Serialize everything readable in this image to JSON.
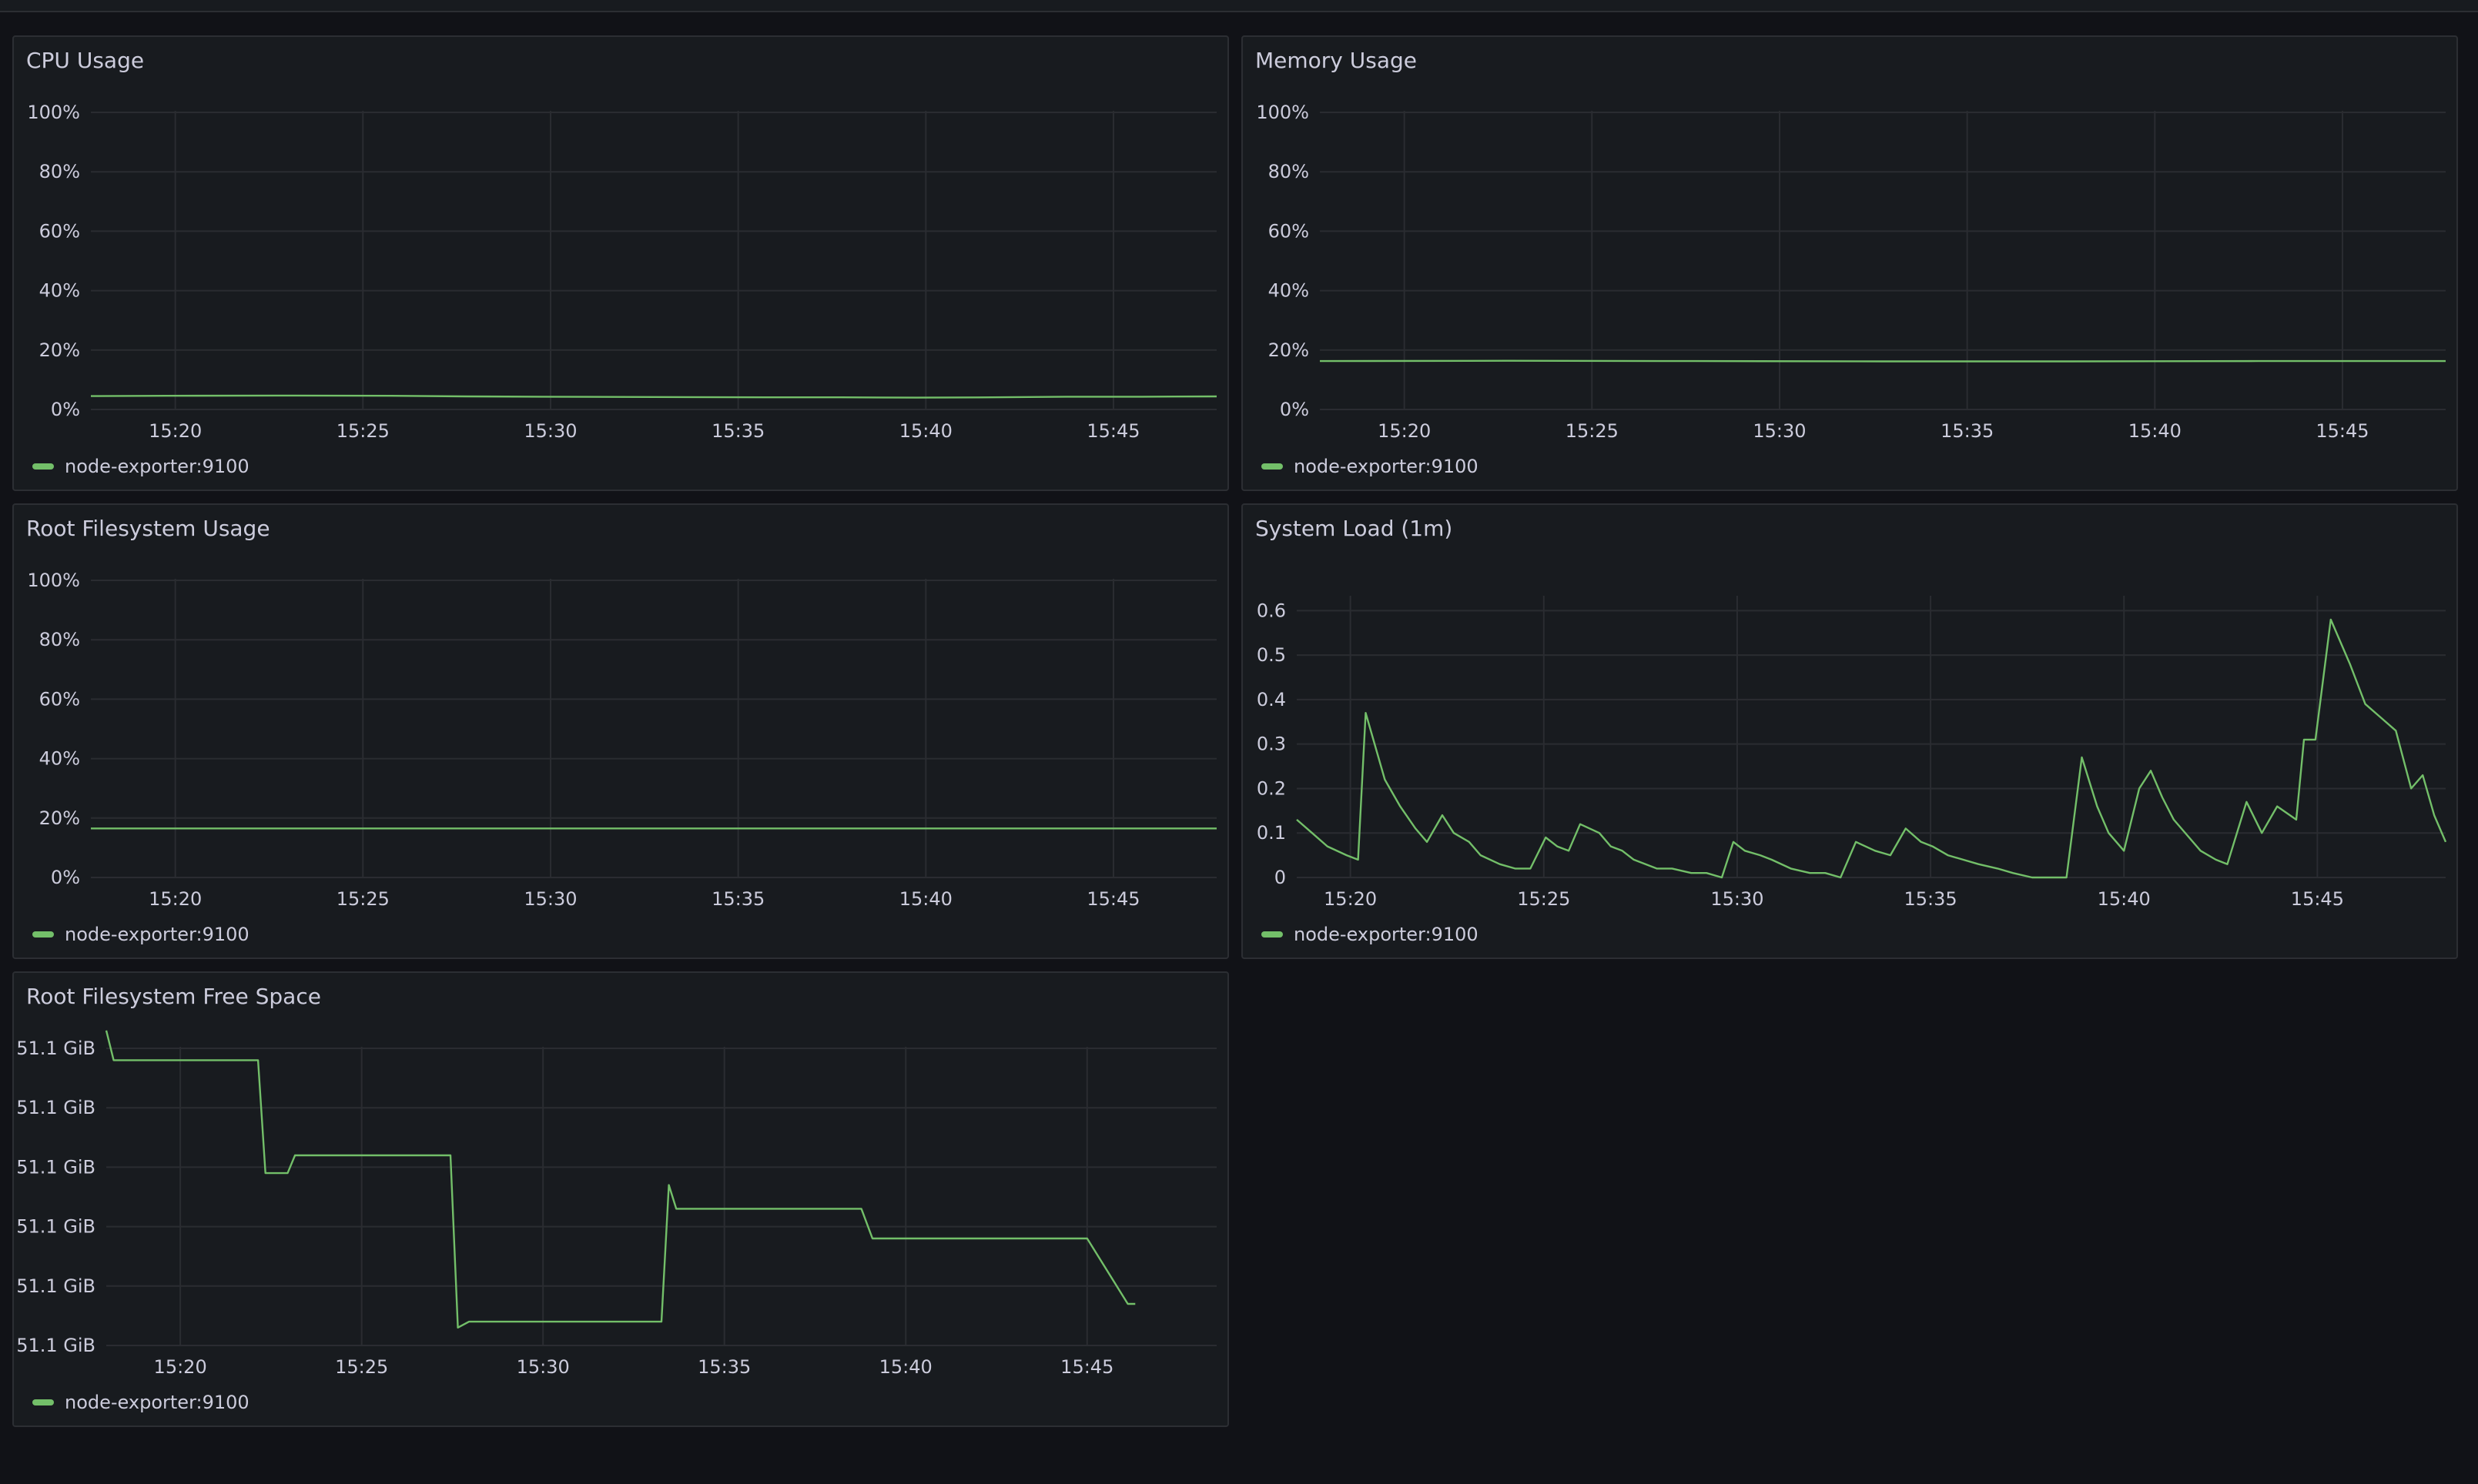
{
  "dashboard": {
    "colors": {
      "background": "#111217",
      "panel": "#181b1f",
      "border": "#2c2e33",
      "series": "#73bf69",
      "text": "#ccccdc"
    },
    "legend_label": "node-exporter:9100",
    "x_ticks": [
      "15:20",
      "15:25",
      "15:30",
      "15:35",
      "15:40",
      "15:45"
    ]
  },
  "chart_data": [
    {
      "id": "cpu",
      "type": "line",
      "title": "CPU Usage",
      "unit": "percent",
      "x_range": [
        "15:17:45",
        "15:47:45"
      ],
      "ylim": [
        0,
        100
      ],
      "y_ticks": [
        "0%",
        "20%",
        "40%",
        "60%",
        "80%",
        "100%"
      ],
      "series": [
        {
          "name": "node-exporter:9100",
          "x_minutes": [
            0,
            2,
            5,
            8,
            10,
            12,
            15,
            18,
            20,
            22,
            24,
            26,
            28,
            30
          ],
          "values": [
            4.5,
            4.6,
            4.7,
            4.6,
            4.4,
            4.3,
            4.2,
            4.1,
            4.1,
            4.0,
            4.1,
            4.3,
            4.3,
            4.4
          ]
        }
      ]
    },
    {
      "id": "memory",
      "type": "line",
      "title": "Memory Usage",
      "unit": "percent",
      "x_range": [
        "15:17:45",
        "15:47:45"
      ],
      "ylim": [
        0,
        100
      ],
      "y_ticks": [
        "0%",
        "20%",
        "40%",
        "60%",
        "80%",
        "100%"
      ],
      "series": [
        {
          "name": "node-exporter:9100",
          "x_minutes": [
            0,
            5,
            10,
            15,
            20,
            25,
            30
          ],
          "values": [
            16.3,
            16.4,
            16.3,
            16.2,
            16.2,
            16.3,
            16.3
          ]
        }
      ]
    },
    {
      "id": "rootfs",
      "type": "line",
      "title": "Root Filesystem Usage",
      "unit": "percent",
      "x_range": [
        "15:17:45",
        "15:47:45"
      ],
      "ylim": [
        0,
        100
      ],
      "y_ticks": [
        "0%",
        "20%",
        "40%",
        "60%",
        "80%",
        "100%"
      ],
      "series": [
        {
          "name": "node-exporter:9100",
          "x_minutes": [
            0,
            30
          ],
          "values": [
            16.5,
            16.5
          ]
        }
      ]
    },
    {
      "id": "load",
      "type": "line",
      "title": "System Load (1m)",
      "unit": "load",
      "x_range": [
        "15:17:45",
        "15:47:45"
      ],
      "ylim": [
        0,
        0.63
      ],
      "y_ticks": [
        "0",
        "0.1",
        "0.2",
        "0.3",
        "0.4",
        "0.5",
        "0.6"
      ],
      "series": [
        {
          "name": "node-exporter:9100",
          "x_minutes": [
            0.0,
            0.4,
            0.8,
            1.3,
            1.6,
            1.8,
            2.3,
            2.7,
            3.1,
            3.4,
            3.8,
            4.1,
            4.5,
            4.8,
            5.3,
            5.7,
            6.1,
            6.5,
            6.8,
            7.1,
            7.4,
            7.9,
            8.2,
            8.5,
            8.8,
            9.4,
            9.8,
            10.3,
            10.7,
            11.1,
            11.4,
            11.7,
            12.1,
            12.4,
            12.9,
            13.4,
            13.8,
            14.2,
            14.6,
            15.1,
            15.5,
            15.9,
            16.3,
            16.6,
            17.0,
            17.4,
            17.8,
            18.3,
            18.7,
            19.2,
            19.6,
            20.1,
            20.5,
            20.9,
            21.2,
            21.6,
            22.0,
            22.3,
            22.6,
            22.9,
            23.3,
            23.6,
            24.0,
            24.3,
            24.8,
            25.2,
            25.6,
            26.1,
            26.3,
            26.6,
            27.0,
            27.5,
            27.9,
            28.3,
            28.7,
            29.1,
            29.4,
            29.7,
            30.0
          ],
          "values": [
            0.13,
            0.1,
            0.07,
            0.05,
            0.04,
            0.37,
            0.22,
            0.16,
            0.11,
            0.08,
            0.14,
            0.1,
            0.08,
            0.05,
            0.03,
            0.02,
            0.02,
            0.09,
            0.07,
            0.06,
            0.12,
            0.1,
            0.07,
            0.06,
            0.04,
            0.02,
            0.02,
            0.01,
            0.01,
            0.0,
            0.08,
            0.06,
            0.05,
            0.04,
            0.02,
            0.01,
            0.01,
            0.0,
            0.08,
            0.06,
            0.05,
            0.11,
            0.08,
            0.07,
            0.05,
            0.04,
            0.03,
            0.02,
            0.01,
            0.0,
            0.0,
            0.0,
            0.27,
            0.16,
            0.1,
            0.06,
            0.2,
            0.24,
            0.18,
            0.13,
            0.09,
            0.06,
            0.04,
            0.03,
            0.17,
            0.1,
            0.16,
            0.13,
            0.31,
            0.31,
            0.58,
            0.48,
            0.39,
            0.36,
            0.33,
            0.2,
            0.23,
            0.14,
            0.08
          ]
        }
      ]
    },
    {
      "id": "rootfs-free",
      "type": "line",
      "title": "Root Filesystem Free Space",
      "unit": "GiB",
      "x_range": [
        "15:17:45",
        "15:47:45"
      ],
      "y_ticks": [
        "51.1 GiB",
        "51.1 GiB",
        "51.1 GiB",
        "51.1 GiB",
        "51.1 GiB",
        "51.1 GiB"
      ],
      "ylim": [
        0,
        5
      ],
      "series": [
        {
          "name": "node-exporter:9100",
          "x_minutes": [
            0.0,
            0.2,
            4.1,
            4.3,
            4.9,
            5.1,
            5.9,
            9.3,
            9.5,
            9.8,
            10.9,
            11.3,
            12.1,
            15.0,
            15.2,
            15.4,
            20.4,
            20.7,
            22.6,
            24.7,
            25.1,
            26.2,
            26.3,
            26.5,
            27.6,
            27.8
          ],
          "values": [
            5.3,
            4.8,
            4.8,
            2.9,
            2.9,
            3.2,
            3.2,
            3.2,
            0.3,
            0.4,
            0.4,
            0.4,
            0.4,
            0.4,
            2.7,
            2.3,
            2.3,
            1.8,
            1.8,
            1.8,
            1.8,
            1.8,
            1.8,
            1.8,
            0.7,
            0.7
          ]
        }
      ]
    }
  ]
}
